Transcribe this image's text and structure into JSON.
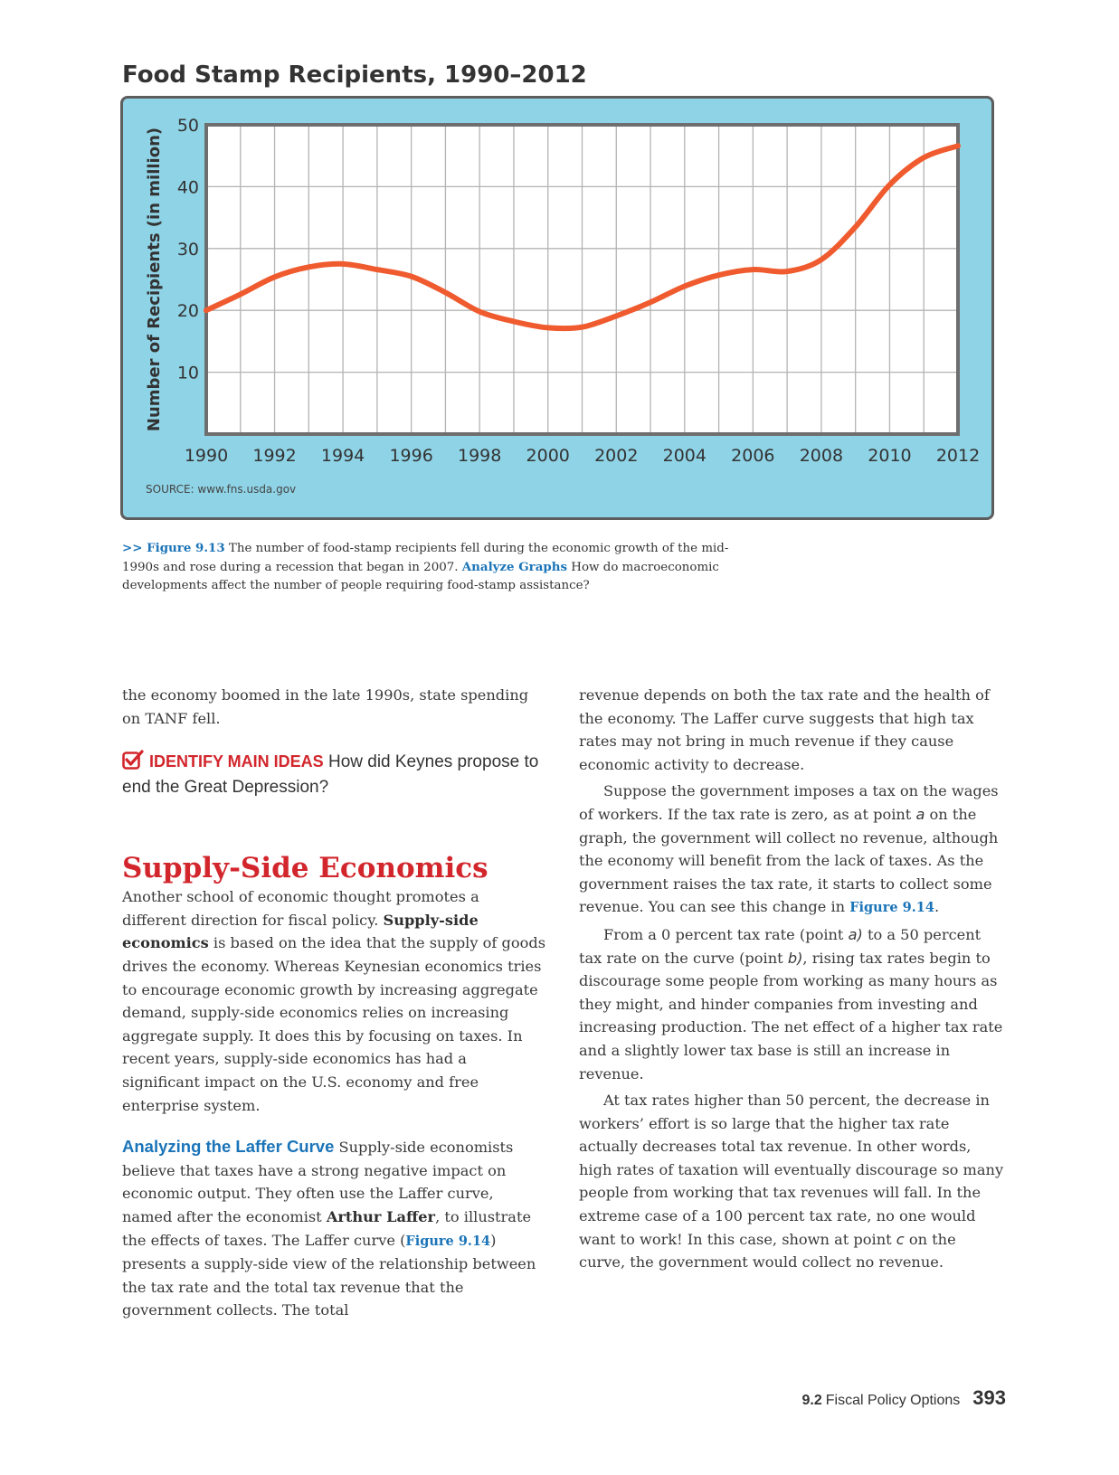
{
  "chart": {
    "title": "Food Stamp Recipients, 1990–2012",
    "ylabel": "Number of Recipients (in million)",
    "source": "SOURCE: www.fns.usda.gov"
  },
  "chart_data": {
    "type": "line",
    "title": "Food Stamp Recipients, 1990–2012",
    "xlabel": "",
    "ylabel": "Number of Recipients (in million)",
    "x": [
      1990,
      1991,
      1992,
      1993,
      1994,
      1995,
      1996,
      1997,
      1998,
      1999,
      2000,
      2001,
      2002,
      2003,
      2004,
      2005,
      2006,
      2007,
      2008,
      2009,
      2010,
      2011,
      2012
    ],
    "series": [
      {
        "values": [
          20.0,
          22.6,
          25.4,
          27.0,
          27.5,
          26.6,
          25.5,
          22.9,
          19.8,
          18.2,
          17.2,
          17.3,
          19.1,
          21.3,
          23.9,
          25.7,
          26.6,
          26.3,
          28.2,
          33.5,
          40.3,
          44.7,
          46.6
        ],
        "color": "#ef5b2e"
      }
    ],
    "xticks": [
      "1990",
      "1992",
      "1994",
      "1996",
      "1998",
      "2000",
      "2002",
      "2004",
      "2006",
      "2008",
      "2010",
      "2012"
    ],
    "yticks": [
      "10",
      "20",
      "30",
      "40",
      "50"
    ],
    "ylim": [
      0,
      50
    ],
    "xlim": [
      1990,
      2012
    ],
    "grid": true,
    "background": "#8fd3e6"
  },
  "caption": {
    "prefix": ">> Figure 9.13",
    "text": " The number of food-stamp recipients fell during the economic growth of the mid-1990s and rose during a recession that began in 2007. ",
    "analyze": "Analyze Graphs",
    "question": " How do macroeconomic developments affect the number of people requiring food-stamp assistance?"
  },
  "left": {
    "p1": "the economy boomed in the late 1990s, state spending on TANF fell.",
    "main_idea_label": "IDENTIFY MAIN IDEAS",
    "main_idea_text": " How did Keynes propose to end the Great Depression?",
    "heading": "Supply-Side Economics",
    "p2a": "Another school of economic thought promotes a different direction for fiscal policy. ",
    "p2_term": "Supply-side economics",
    "p2b": " is based on the idea that the supply of goods drives the economy. Whereas Keynesian economics tries to encourage economic growth by increasing aggregate demand, supply-side economics relies on increasing aggregate supply. It does this by focusing on taxes. In recent years, supply-side economics has had a significant impact on the U.S. economy and free enterprise system.",
    "subheading": "Analyzing the Laffer Curve",
    "p3a": " Supply-side economists believe that taxes have a strong negative impact on economic output. They often use the Laffer curve, named after the economist ",
    "p3_name": "Arthur Laffer",
    "p3b": ", to illustrate the effects of taxes. The Laffer curve (",
    "p3_fig": "Figure 9.14",
    "p3c": ") presents a supply-side view of the relationship between the tax rate and the total tax revenue that the government collects. The total"
  },
  "right": {
    "p1": "revenue depends on both the tax rate and the health of the economy. The Laffer curve suggests that high tax rates may not bring in much revenue if they cause economic activity to decrease.",
    "p2a": "Suppose the government imposes a tax on the wages of workers. If the tax rate is zero, as at point ",
    "p2_pt": "a",
    "p2b": " on the graph, the government will collect no revenue, although the economy will benefit from the lack of taxes. As the government raises the tax rate, it starts to collect some revenue. You can see this change in ",
    "p2_fig": "Figure 9.14",
    "p2c": ".",
    "p3a": "From a 0 percent tax rate (point ",
    "p3_pa": "a)",
    "p3b": " to a 50 percent tax rate on the curve (point ",
    "p3_pb": "b)",
    "p3c": ", rising tax rates begin to discourage some people from working as many hours as they might, and hinder companies from investing and increasing production. The net effect of a higher tax rate and a slightly lower tax base is still an increase in revenue.",
    "p4a": "At tax rates higher than 50 percent, the decrease in workers’ effort is so large that the higher tax rate actually decreases total tax revenue. In other words, high rates of taxation will eventually discourage so many people from working that tax revenues will fall. In the extreme case of a 100 percent tax rate, no one would want to work! In this case, shown at point ",
    "p4_pc": "c",
    "p4b": " on the curve, the government would collect no revenue."
  },
  "footer": {
    "section_number": "9.2",
    "section_title": "Fiscal Policy Options",
    "page_number": "393"
  },
  "colors": {
    "accent_red": "#d2262c",
    "accent_blue": "#1b74b8",
    "line": "#ef5b2e"
  },
  "icons": {
    "main_idea": "checkbox-check-icon"
  }
}
